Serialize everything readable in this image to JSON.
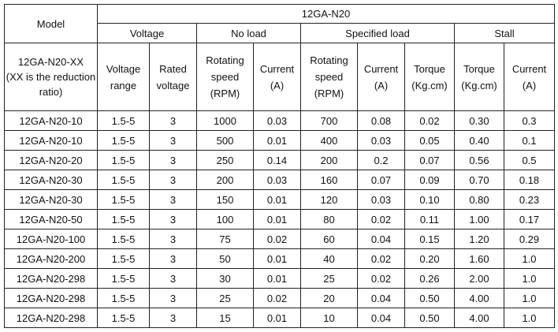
{
  "table": {
    "model_header": "Model",
    "product_header": "12GA-N20",
    "groups": {
      "voltage": "Voltage",
      "no_load": "No load",
      "specified_load": "Specified load",
      "stall": "Stall"
    },
    "columns": {
      "model": "12GA-N20-XX\n(XX is the reduction ratio)",
      "voltage_range": "Voltage range",
      "rated_voltage": "Rated voltage",
      "noload_speed": "Rotating speed (RPM)",
      "noload_current": "Current (A)",
      "load_speed": "Rotating speed (RPM)",
      "load_current": "Current (A)",
      "load_torque": "Torque (Kg.cm)",
      "stall_torque": "Torque (Kg.cm)",
      "stall_current": "Current (A)"
    },
    "rows": [
      [
        "12GA-N20-10",
        "1.5-5",
        "3",
        "1000",
        "0.03",
        "700",
        "0.08",
        "0.02",
        "0.30",
        "0.3"
      ],
      [
        "12GA-N20-10",
        "1.5-5",
        "3",
        "500",
        "0.01",
        "400",
        "0.03",
        "0.05",
        "0.40",
        "0.1"
      ],
      [
        "12GA-N20-20",
        "1.5-5",
        "3",
        "250",
        "0.14",
        "200",
        "0.2",
        "0.07",
        "0.56",
        "0.5"
      ],
      [
        "12GA-N20-30",
        "1.5-5",
        "3",
        "200",
        "0.03",
        "160",
        "0.07",
        "0.09",
        "0.70",
        "0.18"
      ],
      [
        "12GA-N20-30",
        "1.5-5",
        "3",
        "150",
        "0.01",
        "120",
        "0.03",
        "0.10",
        "0.80",
        "0.23"
      ],
      [
        "12GA-N20-50",
        "1.5-5",
        "3",
        "100",
        "0.01",
        "80",
        "0.02",
        "0.11",
        "1.00",
        "0.17"
      ],
      [
        "12GA-N20-100",
        "1.5-5",
        "3",
        "75",
        "0.02",
        "60",
        "0.04",
        "0.15",
        "1.20",
        "0.29"
      ],
      [
        "12GA-N20-200",
        "1.5-5",
        "3",
        "50",
        "0.01",
        "40",
        "0.02",
        "0.20",
        "1.60",
        "1.0"
      ],
      [
        "12GA-N20-298",
        "1.5-5",
        "3",
        "30",
        "0.01",
        "25",
        "0.02",
        "0.26",
        "2.00",
        "1.0"
      ],
      [
        "12GA-N20-298",
        "1.5-5",
        "3",
        "25",
        "0.02",
        "20",
        "0.04",
        "0.50",
        "4.00",
        "1.0"
      ],
      [
        "12GA-N20-298",
        "1.5-5",
        "3",
        "15",
        "0.01",
        "10",
        "0.04",
        "0.50",
        "4.00",
        "1.0"
      ]
    ]
  }
}
